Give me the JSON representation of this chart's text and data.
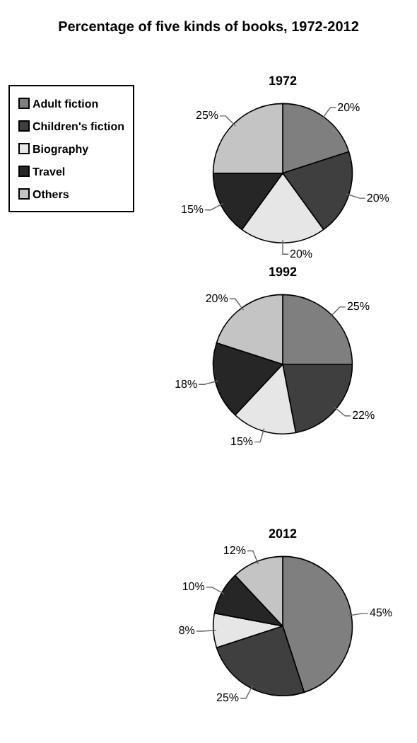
{
  "chart_data": [
    {
      "type": "pie",
      "title": "1972",
      "annotations": [
        "Percentage of five kinds of books, 1972-2012"
      ],
      "legend": "left",
      "categories": [
        "Adult fiction",
        "Children's fiction",
        "Biography",
        "Travel",
        "Others"
      ],
      "values": [
        20,
        20,
        20,
        15,
        25
      ],
      "value_labels": [
        "20%",
        "20%",
        "20%",
        "15%",
        "25%"
      ],
      "colors": [
        "#7f7f7f",
        "#3f3f3f",
        "#e6e6e6",
        "#262626",
        "#c4c4c4"
      ]
    },
    {
      "type": "pie",
      "title": "1992",
      "categories": [
        null,
        null,
        null,
        null,
        null
      ],
      "values": [
        25,
        22,
        15,
        18,
        20
      ],
      "value_labels": [
        "25%",
        "22%",
        "15%",
        "18%",
        "20%"
      ],
      "colors": [
        "#7f7f7f",
        "#3f3f3f",
        "#e6e6e6",
        "#262626",
        "#c4c4c4"
      ]
    },
    {
      "type": "pie",
      "title": "2012",
      "categories": [
        null,
        null,
        null,
        null,
        null
      ],
      "values": [
        45,
        25,
        8,
        10,
        12
      ],
      "value_labels": [
        "45%",
        "25%",
        "8%",
        "10%",
        "12%"
      ],
      "colors": [
        "#7f7f7f",
        "#3f3f3f",
        "#e6e6e6",
        "#262626",
        "#c4c4c4"
      ]
    }
  ]
}
